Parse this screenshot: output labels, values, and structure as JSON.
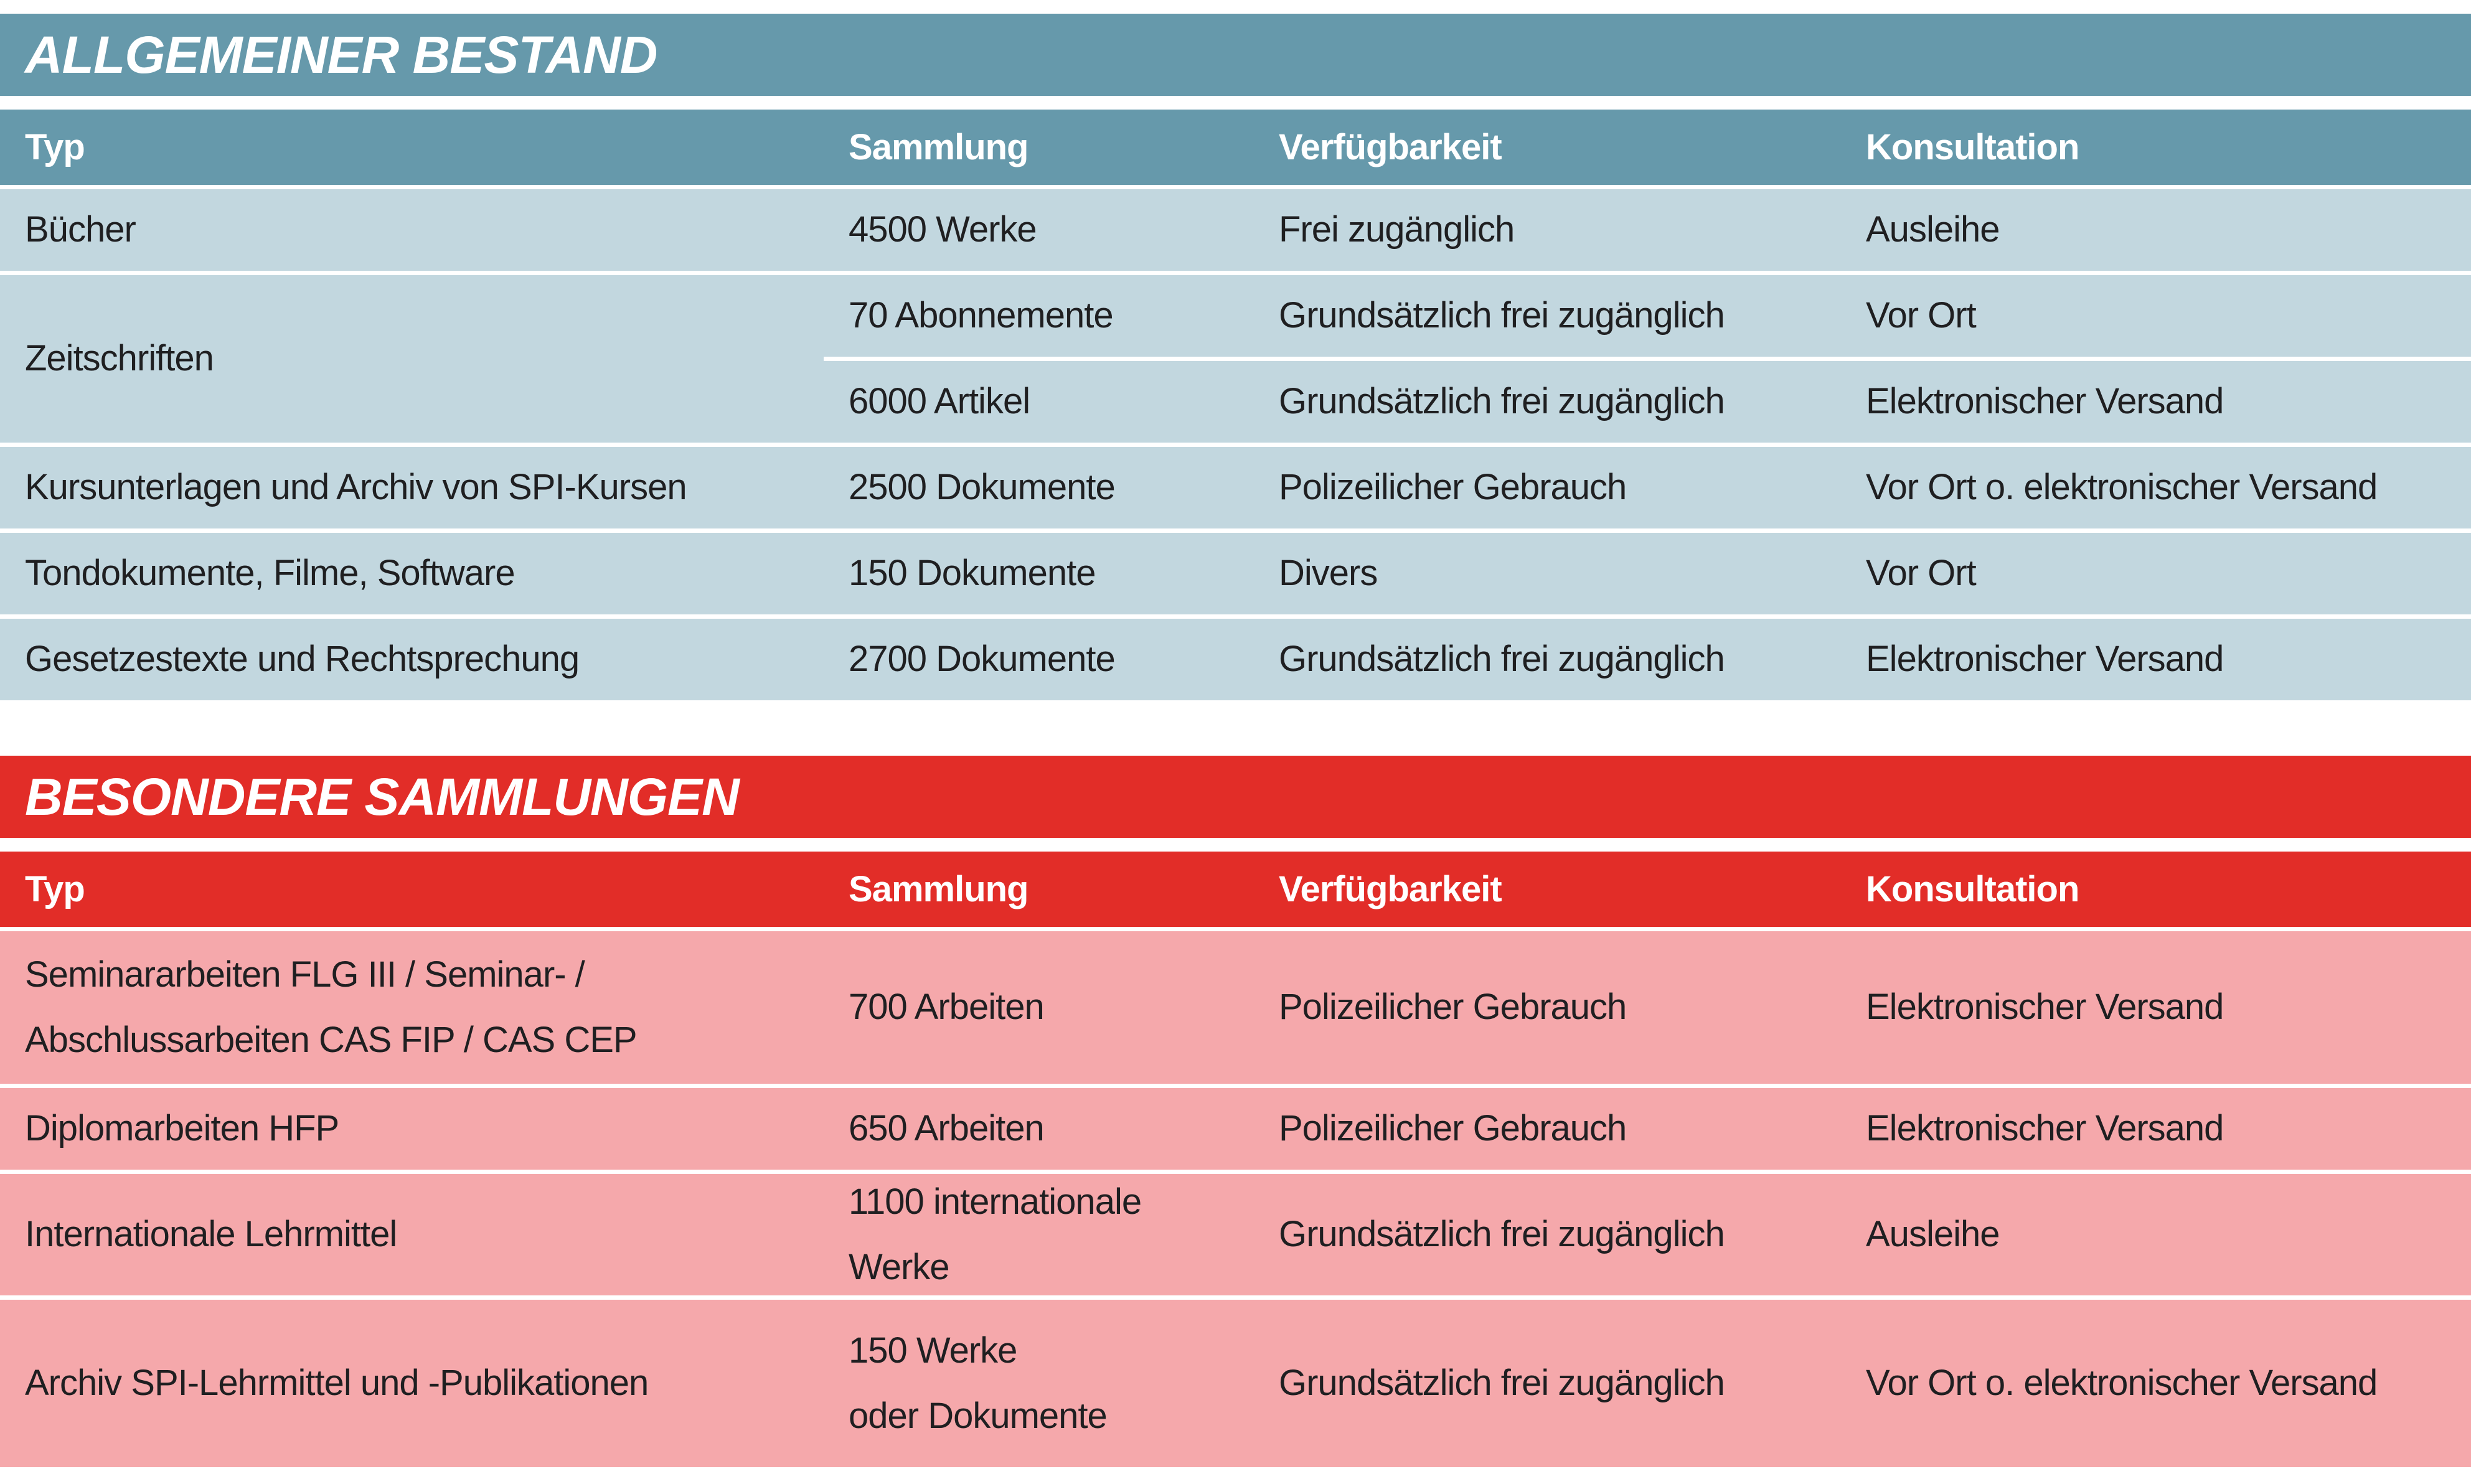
{
  "colors": {
    "blue_header": "#6699ab",
    "blue_row": "#c2d7df",
    "red_header": "#e22d28",
    "red_row": "#f5a8ab",
    "header_text": "#ffffff",
    "body_text": "#1f1f21",
    "divider": "#ffffff"
  },
  "table1": {
    "title": "ALLGEMEINER BESTAND",
    "columns": [
      "Typ",
      "Sammlung",
      "Verfügbarkeit",
      "Konsultation"
    ],
    "rows": [
      {
        "typ": "Bücher",
        "sammlung": "4500 Werke",
        "verf": "Frei zugänglich",
        "kons": "Ausleihe"
      },
      {
        "typ": "Zeitschriften",
        "sub": [
          {
            "sammlung": "70 Abonnemente",
            "verf": "Grundsätzlich frei zugänglich",
            "kons": "Vor Ort"
          },
          {
            "sammlung": "6000 Artikel",
            "verf": "Grundsätzlich frei zugänglich",
            "kons": "Elektronischer Versand"
          }
        ]
      },
      {
        "typ": "Kursunterlagen und Archiv von SPI-Kursen",
        "sammlung": "2500 Dokumente",
        "verf": "Polizeilicher Gebrauch",
        "kons": "Vor Ort o. elektronischer Versand"
      },
      {
        "typ": "Tondokumente, Filme, Software",
        "sammlung": "150 Dokumente",
        "verf": "Divers",
        "kons": "Vor Ort"
      },
      {
        "typ": "Gesetzestexte und Rechtsprechung",
        "sammlung": "2700 Dokumente",
        "verf": "Grundsätzlich frei zugänglich",
        "kons": "Elektronischer Versand"
      }
    ]
  },
  "table2": {
    "title": "BESONDERE SAMMLUNGEN",
    "columns": [
      "Typ",
      "Sammlung",
      "Verfügbarkeit",
      "Konsultation"
    ],
    "rows": [
      {
        "typ": "Seminararbeiten FLG III / Seminar- /\nAbschlussarbeiten CAS FIP / CAS CEP",
        "sammlung": "700 Arbeiten",
        "verf": "Polizeilicher Gebrauch",
        "kons": "Elektronischer Versand"
      },
      {
        "typ": "Diplomarbeiten HFP",
        "sammlung": "650 Arbeiten",
        "verf": "Polizeilicher Gebrauch",
        "kons": "Elektronischer Versand"
      },
      {
        "typ": "Internationale Lehrmittel",
        "sammlung": "1100 internationale\nWerke",
        "verf": "Grundsätzlich frei zugänglich",
        "kons": "Ausleihe"
      },
      {
        "typ": "Archiv SPI-Lehrmittel und -Publikationen",
        "sammlung": "150 Werke\noder Dokumente",
        "verf": "Grundsätzlich frei zugänglich",
        "kons": "Vor Ort o. elektronischer Versand"
      }
    ]
  }
}
